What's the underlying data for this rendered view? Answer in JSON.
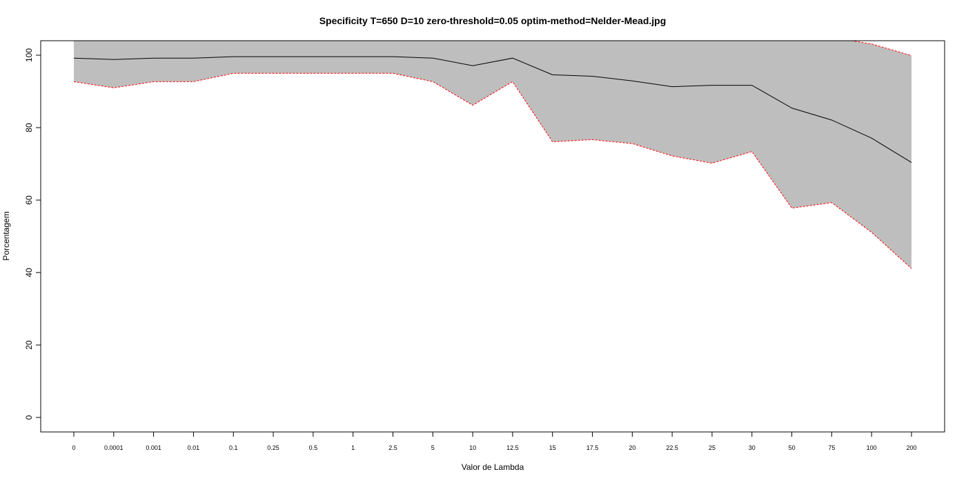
{
  "chart_data": {
    "type": "area",
    "title": "Specificity T=650 D=10 zero-threshold=0.05 optim-method=Nelder-Mead.jpg",
    "xlabel": "Valor de Lambda",
    "ylabel": "Porcentagem",
    "categories": [
      "0",
      "0.0001",
      "0.001",
      "0.01",
      "0.1",
      "0.25",
      "0.5",
      "1",
      "2.5",
      "5",
      "10",
      "12.5",
      "15",
      "17.5",
      "20",
      "22.5",
      "25",
      "30",
      "50",
      "75",
      "100",
      "200"
    ],
    "ylim": [
      -3,
      104
    ],
    "yticks": [
      0,
      20,
      40,
      60,
      80,
      100
    ],
    "grid": false,
    "colors": {
      "band_fill": "#bebebe",
      "mean_line": "#000000",
      "bound_line": "#ff0000"
    },
    "series": [
      {
        "values": [
          99.2,
          98.8,
          99.2,
          99.2,
          99.6,
          99.6,
          99.6,
          99.6,
          99.6,
          99.2,
          97.1,
          99.2,
          94.6,
          94.2,
          92.9,
          91.3,
          91.7,
          91.7,
          85.4,
          82.1,
          77.1,
          70.4
        ]
      },
      {
        "values": [
          92.7,
          91.0,
          92.7,
          92.7,
          95.0,
          95.0,
          95.0,
          95.0,
          95.0,
          92.7,
          86.2,
          92.7,
          76.1,
          76.7,
          75.6,
          72.2,
          70.2,
          73.4,
          57.8,
          59.3,
          51.1,
          41.1
        ]
      },
      {
        "values": [
          105.6,
          106.6,
          105.6,
          105.6,
          104.1,
          104.1,
          104.1,
          104.1,
          104.1,
          105.6,
          108.0,
          105.6,
          113.0,
          111.7,
          110.1,
          110.3,
          113.2,
          110.0,
          113.1,
          104.9,
          103.1,
          99.9
        ]
      }
    ]
  }
}
